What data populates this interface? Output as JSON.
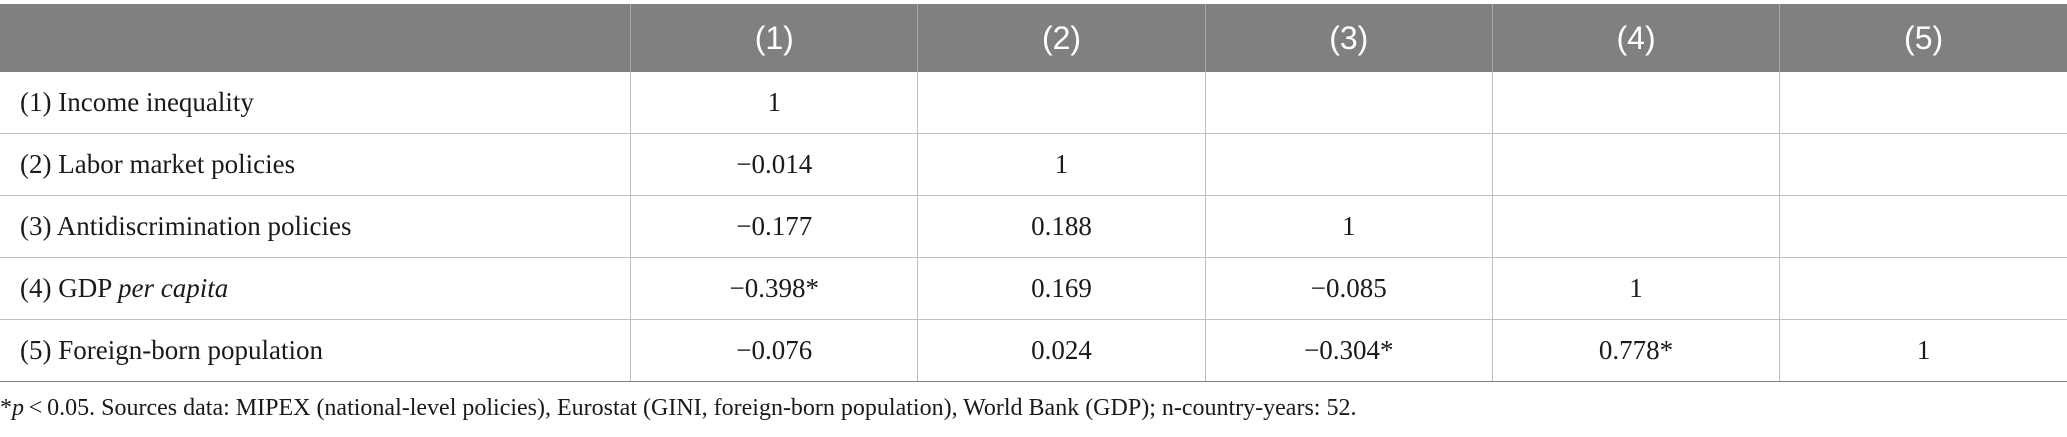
{
  "table": {
    "headers": [
      "",
      "(1)",
      "(2)",
      "(3)",
      "(4)",
      "(5)"
    ],
    "rows": [
      {
        "label_prefix": "(1) Income inequality",
        "label_italic": "",
        "cells": [
          "1",
          "",
          "",
          "",
          ""
        ]
      },
      {
        "label_prefix": "(2) Labor market policies",
        "label_italic": "",
        "cells": [
          "−0.014",
          "1",
          "",
          "",
          ""
        ]
      },
      {
        "label_prefix": "(3) Antidiscrimination policies",
        "label_italic": "",
        "cells": [
          "−0.177",
          "0.188",
          "1",
          "",
          ""
        ]
      },
      {
        "label_prefix": "(4) GDP ",
        "label_italic": "per capita",
        "cells": [
          "−0.398*",
          "0.169",
          "−0.085",
          "1",
          ""
        ]
      },
      {
        "label_prefix": "(5) Foreign-born population",
        "label_italic": "",
        "cells": [
          "−0.076",
          "0.024",
          "−0.304*",
          "0.778*",
          "1"
        ]
      }
    ]
  },
  "footnote": {
    "star": "*",
    "p": "p",
    "rest": " < 0.05. Sources data: MIPEX (national-level policies), Eurostat (GINI, foreign-born population), World Bank (GDP); n-country-years: 52."
  }
}
